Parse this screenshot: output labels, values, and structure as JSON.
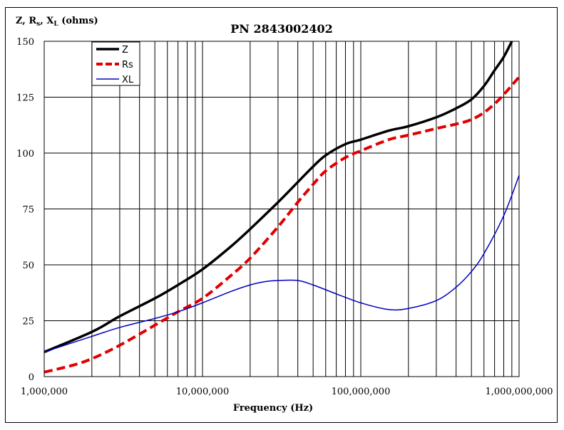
{
  "chart_data": {
    "type": "line",
    "title": "PN 2843002402",
    "ylabel": "Z, Rs, XL (ohms)",
    "ylabel_parts": {
      "z": "Z, R",
      "s_sub": "s",
      "mid": ", X",
      "l_sub": "L",
      "unit": " (ohms)"
    },
    "xlabel": "Frequency (Hz)",
    "xscale": "log",
    "xlim": [
      1000000,
      1000000000
    ],
    "ylim": [
      0,
      150
    ],
    "grid": true,
    "yticks": [
      0,
      25,
      50,
      75,
      100,
      125,
      150
    ],
    "xticks": [
      1000000,
      10000000,
      100000000,
      1000000000
    ],
    "xtick_labels": [
      "1,000,000",
      "10,000,000",
      "100,000,000",
      "1,000,000,000"
    ],
    "legend_position": "top-left",
    "series": [
      {
        "name": "Z",
        "color": "#000000",
        "style": "solid-thick",
        "x": [
          1000000,
          2000000,
          3000000,
          5000000,
          7000000,
          10000000,
          15000000,
          20000000,
          30000000,
          40000000,
          50000000,
          60000000,
          80000000,
          100000000,
          150000000,
          200000000,
          300000000,
          400000000,
          500000000,
          600000000,
          700000000,
          800000000,
          900000000
        ],
        "values": [
          11,
          20,
          27,
          35,
          41,
          48,
          58,
          66,
          78,
          87,
          94,
          99,
          104,
          106,
          110,
          112,
          116,
          120,
          124,
          130,
          137,
          143,
          150
        ]
      },
      {
        "name": "Rs",
        "color": "#e00000",
        "style": "dashed-thick",
        "x": [
          1000000,
          1500000,
          2000000,
          3000000,
          5000000,
          7000000,
          10000000,
          15000000,
          20000000,
          30000000,
          40000000,
          50000000,
          60000000,
          80000000,
          100000000,
          150000000,
          200000000,
          300000000,
          500000000,
          700000000,
          1000000000
        ],
        "values": [
          2,
          5,
          8,
          14,
          23,
          29,
          35,
          45,
          53,
          67,
          78,
          86,
          92,
          98,
          101,
          106,
          108,
          111,
          115,
          122,
          134
        ]
      },
      {
        "name": "XL",
        "color": "#0000c0",
        "style": "solid-thin",
        "x": [
          1000000,
          2000000,
          3000000,
          5000000,
          7000000,
          10000000,
          15000000,
          20000000,
          25000000,
          30000000,
          40000000,
          50000000,
          70000000,
          100000000,
          150000000,
          200000000,
          300000000,
          400000000,
          500000000,
          600000000,
          800000000,
          1000000000
        ],
        "values": [
          11,
          18,
          22,
          26,
          29,
          33,
          38,
          41,
          42.5,
          43,
          43,
          41,
          37,
          33,
          30,
          30.5,
          34,
          40,
          47,
          55,
          72,
          90
        ]
      }
    ]
  }
}
